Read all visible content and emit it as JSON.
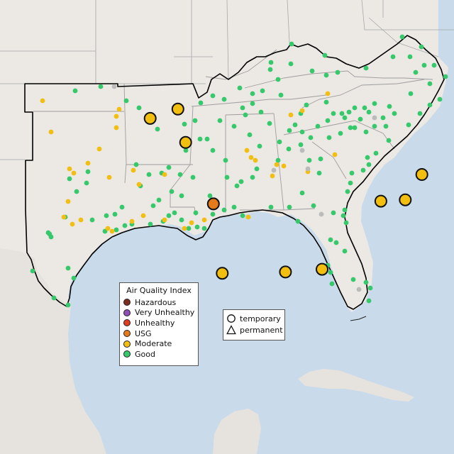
{
  "legend": {
    "title": "Air Quality Index",
    "categories": [
      {
        "label": "Hazardous",
        "color": "#7e2e1e"
      },
      {
        "label": "Very Unhealthy",
        "color": "#8f4fb5"
      },
      {
        "label": "Unhealthy",
        "color": "#e03c22"
      },
      {
        "label": "USG",
        "color": "#e57a1b"
      },
      {
        "label": "Moderate",
        "color": "#f2bf11"
      },
      {
        "label": "Good",
        "color": "#35c96b"
      }
    ],
    "no_data_color": "#bbbbbb"
  },
  "shape_legend": {
    "temporary_label": "temporary",
    "permanent_label": "permanent"
  },
  "colors": {
    "water": "#c9dbea",
    "land": "#ece8e4",
    "outline": "#000000",
    "state_lines": "#a8a8a8"
  },
  "monitors": {
    "temporary": [
      {
        "category": "Moderate",
        "lon": -97.35,
        "lat": 35.7
      },
      {
        "category": "Moderate",
        "lon": -96.1,
        "lat": 36.05
      },
      {
        "category": "Moderate",
        "lon": -95.75,
        "lat": 34.8
      },
      {
        "category": "USG",
        "lon": -94.5,
        "lat": 32.5
      },
      {
        "category": "Moderate",
        "lon": -94.1,
        "lat": 29.9
      },
      {
        "category": "Moderate",
        "lon": -91.25,
        "lat": 29.95
      },
      {
        "category": "Moderate",
        "lon": -89.6,
        "lat": 30.05
      },
      {
        "category": "Moderate",
        "lon": -86.95,
        "lat": 32.6
      },
      {
        "category": "Moderate",
        "lon": -85.85,
        "lat": 32.65
      },
      {
        "category": "Moderate",
        "lon": -85.1,
        "lat": 33.6
      }
    ]
  }
}
